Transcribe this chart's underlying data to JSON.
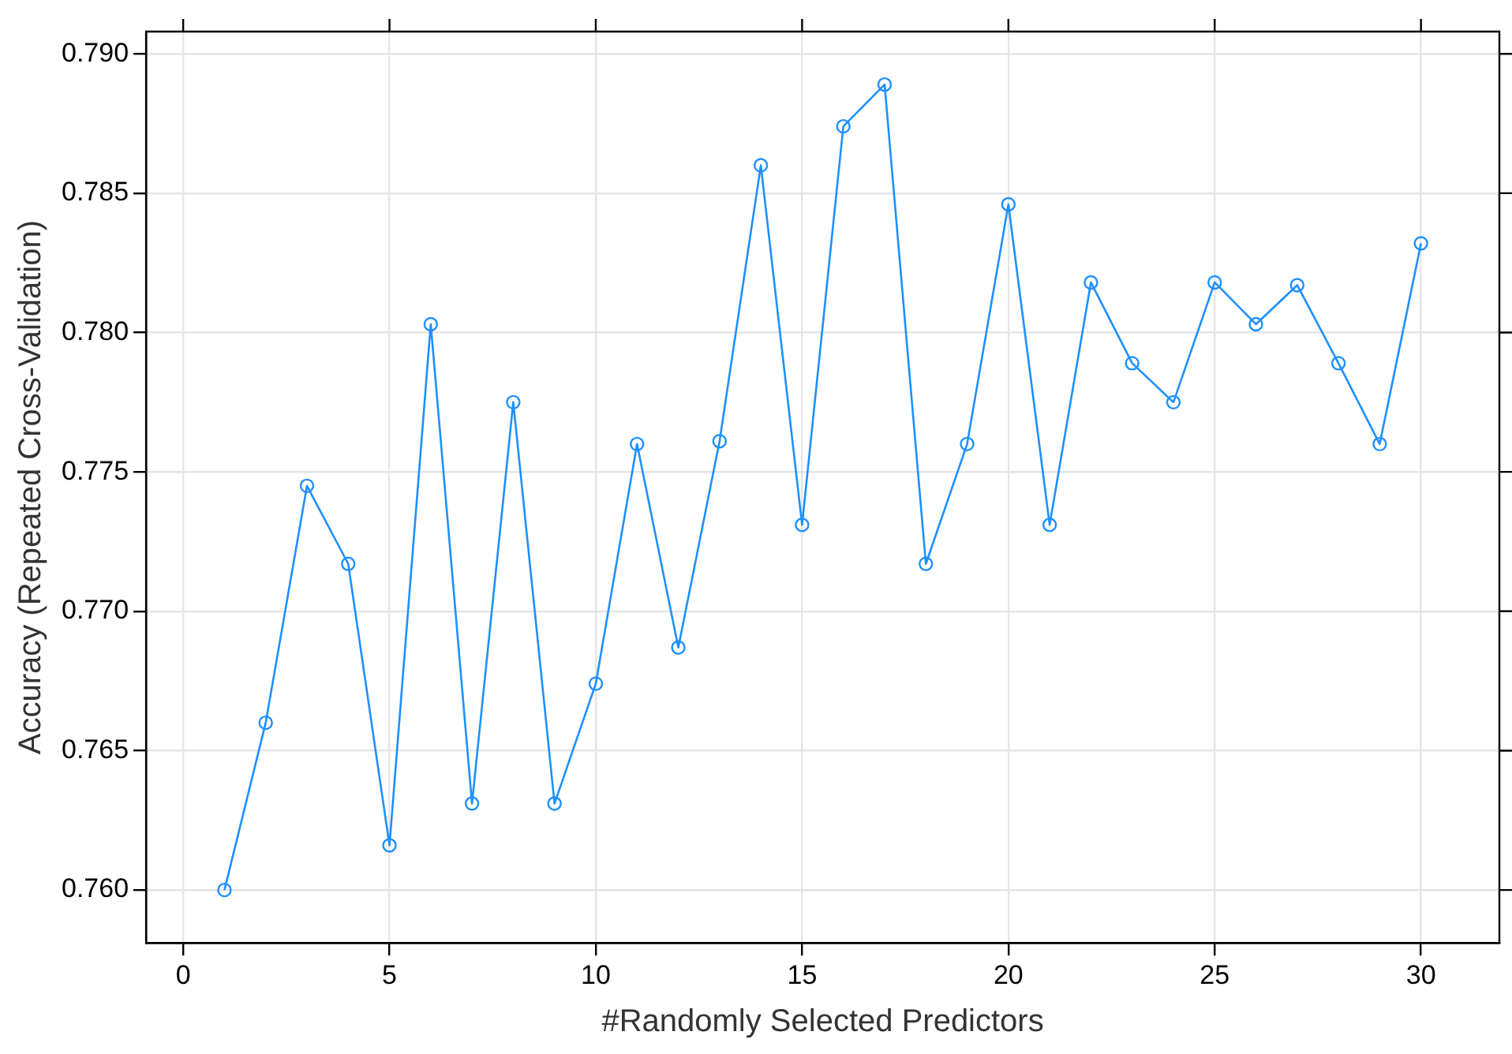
{
  "chart_data": {
    "type": "line",
    "xlabel": "#Randomly Selected Predictors",
    "ylabel": "Accuracy (Repeated Cross-Validation)",
    "x": [
      1,
      2,
      3,
      4,
      5,
      6,
      7,
      8,
      9,
      10,
      11,
      12,
      13,
      14,
      15,
      16,
      17,
      18,
      19,
      20,
      21,
      22,
      23,
      24,
      25,
      26,
      27,
      28,
      29,
      30
    ],
    "series": [
      {
        "color": "#1e90ff",
        "values": [
          0.76,
          0.766,
          0.7745,
          0.7717,
          0.7616,
          0.7803,
          0.7631,
          0.7775,
          0.7631,
          0.7674,
          0.776,
          0.7687,
          0.7761,
          0.786,
          0.7731,
          0.7874,
          0.7889,
          0.7717,
          0.776,
          0.7846,
          0.7731,
          0.7818,
          0.7789,
          0.7775,
          0.7818,
          0.7803,
          0.7817,
          0.7789,
          0.776,
          0.7832
        ]
      }
    ],
    "xlim": [
      -0.9,
      31.9
    ],
    "xticks": [
      0,
      5,
      10,
      15,
      20,
      25,
      30
    ],
    "ylim": [
      0.7581,
      0.7908
    ],
    "yticks": [
      {
        "value": 0.76,
        "label": "0.760"
      },
      {
        "value": 0.765,
        "label": "0.765"
      },
      {
        "value": 0.77,
        "label": "0.770"
      },
      {
        "value": 0.775,
        "label": "0.775"
      },
      {
        "value": 0.78,
        "label": "0.780"
      },
      {
        "value": 0.785,
        "label": "0.785"
      },
      {
        "value": 0.79,
        "label": "0.790"
      }
    ],
    "grid": true,
    "marker": "circle",
    "line_style": "solid"
  }
}
